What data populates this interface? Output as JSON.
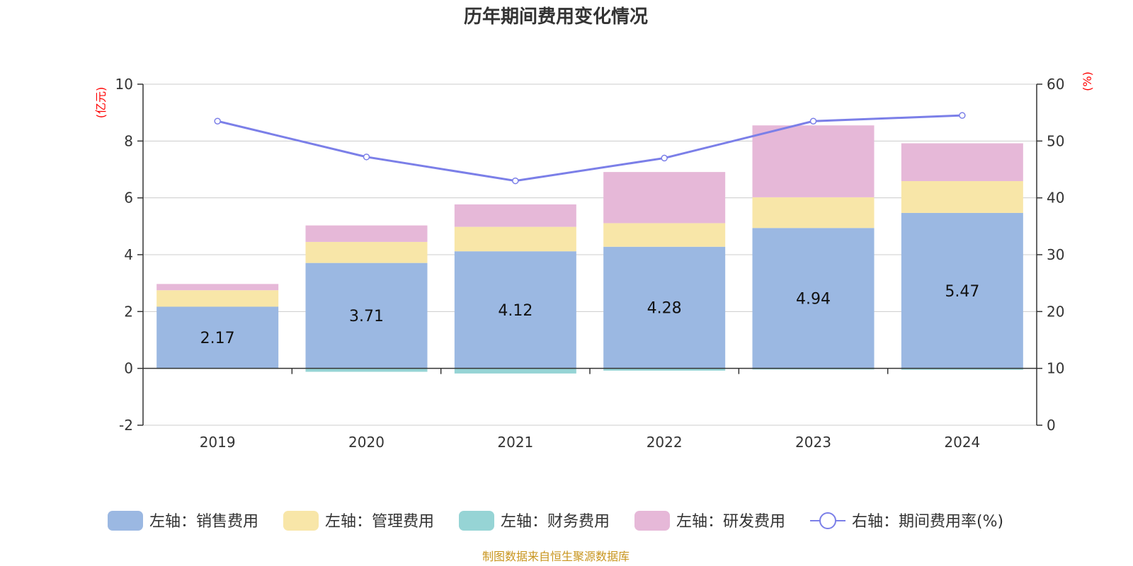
{
  "chart_data": {
    "type": "bar",
    "title": "历年期间费用变化情况",
    "left_axis_unit": "(亿元)",
    "right_axis_unit": "(%)",
    "categories": [
      "2019",
      "2020",
      "2021",
      "2022",
      "2023",
      "2024"
    ],
    "left_axis": {
      "min": -2,
      "max": 10,
      "ticks": [
        -2,
        0,
        2,
        4,
        6,
        8,
        10
      ]
    },
    "right_axis": {
      "min": 0,
      "max": 60,
      "ticks": [
        0,
        10,
        20,
        30,
        40,
        50,
        60
      ]
    },
    "series": [
      {
        "name": "左轴：销售费用",
        "type": "bar",
        "axis": "left",
        "color": "#9bb8e2",
        "values": [
          2.17,
          3.71,
          4.12,
          4.28,
          4.94,
          5.47
        ]
      },
      {
        "name": "左轴：管理费用",
        "type": "bar",
        "axis": "left",
        "color": "#f8e6a8",
        "values": [
          0.58,
          0.74,
          0.86,
          0.83,
          1.08,
          1.12
        ]
      },
      {
        "name": "左轴：财务费用",
        "type": "bar",
        "axis": "left",
        "color": "#96d4d5",
        "values": [
          -0.02,
          -0.12,
          -0.18,
          -0.08,
          -0.04,
          -0.05
        ]
      },
      {
        "name": "左轴：研发费用",
        "type": "bar",
        "axis": "left",
        "color": "#e6b8d8",
        "values": [
          0.22,
          0.58,
          0.79,
          1.8,
          2.53,
          1.33
        ]
      },
      {
        "name": "右轴：期间费用率(%)",
        "type": "line",
        "axis": "right",
        "color": "#7b7fe8",
        "values": [
          53.5,
          47.2,
          43.0,
          47.0,
          53.5,
          54.5
        ]
      }
    ],
    "data_labels": [
      "2.17",
      "3.71",
      "4.12",
      "4.28",
      "4.94",
      "5.47"
    ],
    "legend_position": "bottom",
    "grid": true
  },
  "source_note": "制图数据来自恒生聚源数据库"
}
